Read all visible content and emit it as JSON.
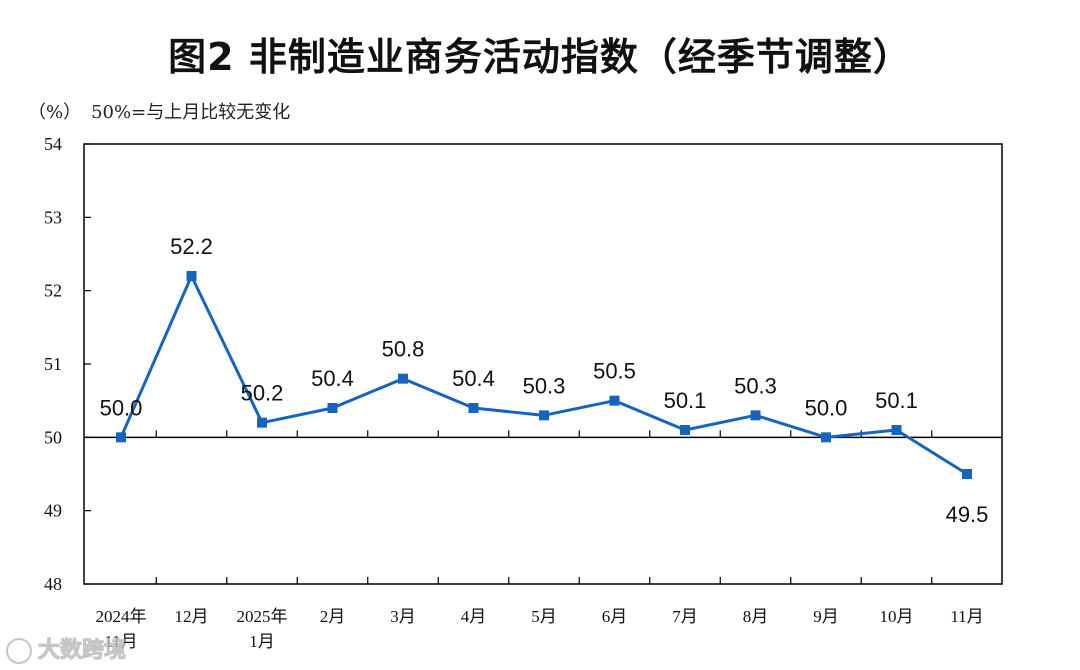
{
  "chart_data": {
    "type": "line",
    "title": "图2  非制造业商务活动指数（经季节调整）",
    "unit_label": "（%）",
    "reference_note": "50%=与上月比较无变化",
    "reference_value": 50,
    "ylim": [
      48,
      54
    ],
    "yticks": [
      "48",
      "49",
      "50",
      "51",
      "52",
      "53",
      "54"
    ],
    "categories": [
      [
        "2024年",
        "11月"
      ],
      [
        "12月"
      ],
      [
        "2025年",
        "1月"
      ],
      [
        "2月"
      ],
      [
        "3月"
      ],
      [
        "4月"
      ],
      [
        "5月"
      ],
      [
        "6月"
      ],
      [
        "7月"
      ],
      [
        "8月"
      ],
      [
        "9月"
      ],
      [
        "10月"
      ],
      [
        "11月"
      ]
    ],
    "values": [
      50.0,
      52.2,
      50.2,
      50.4,
      50.8,
      50.4,
      50.3,
      50.5,
      50.1,
      50.3,
      50.0,
      50.1,
      49.5
    ],
    "value_labels": [
      "50.0",
      "52.2",
      "50.2",
      "50.4",
      "50.8",
      "50.4",
      "50.3",
      "50.5",
      "50.1",
      "50.3",
      "50.0",
      "50.1",
      "49.5"
    ],
    "series_color": "#1565c0",
    "grid": false
  },
  "watermark": "大数跨境"
}
